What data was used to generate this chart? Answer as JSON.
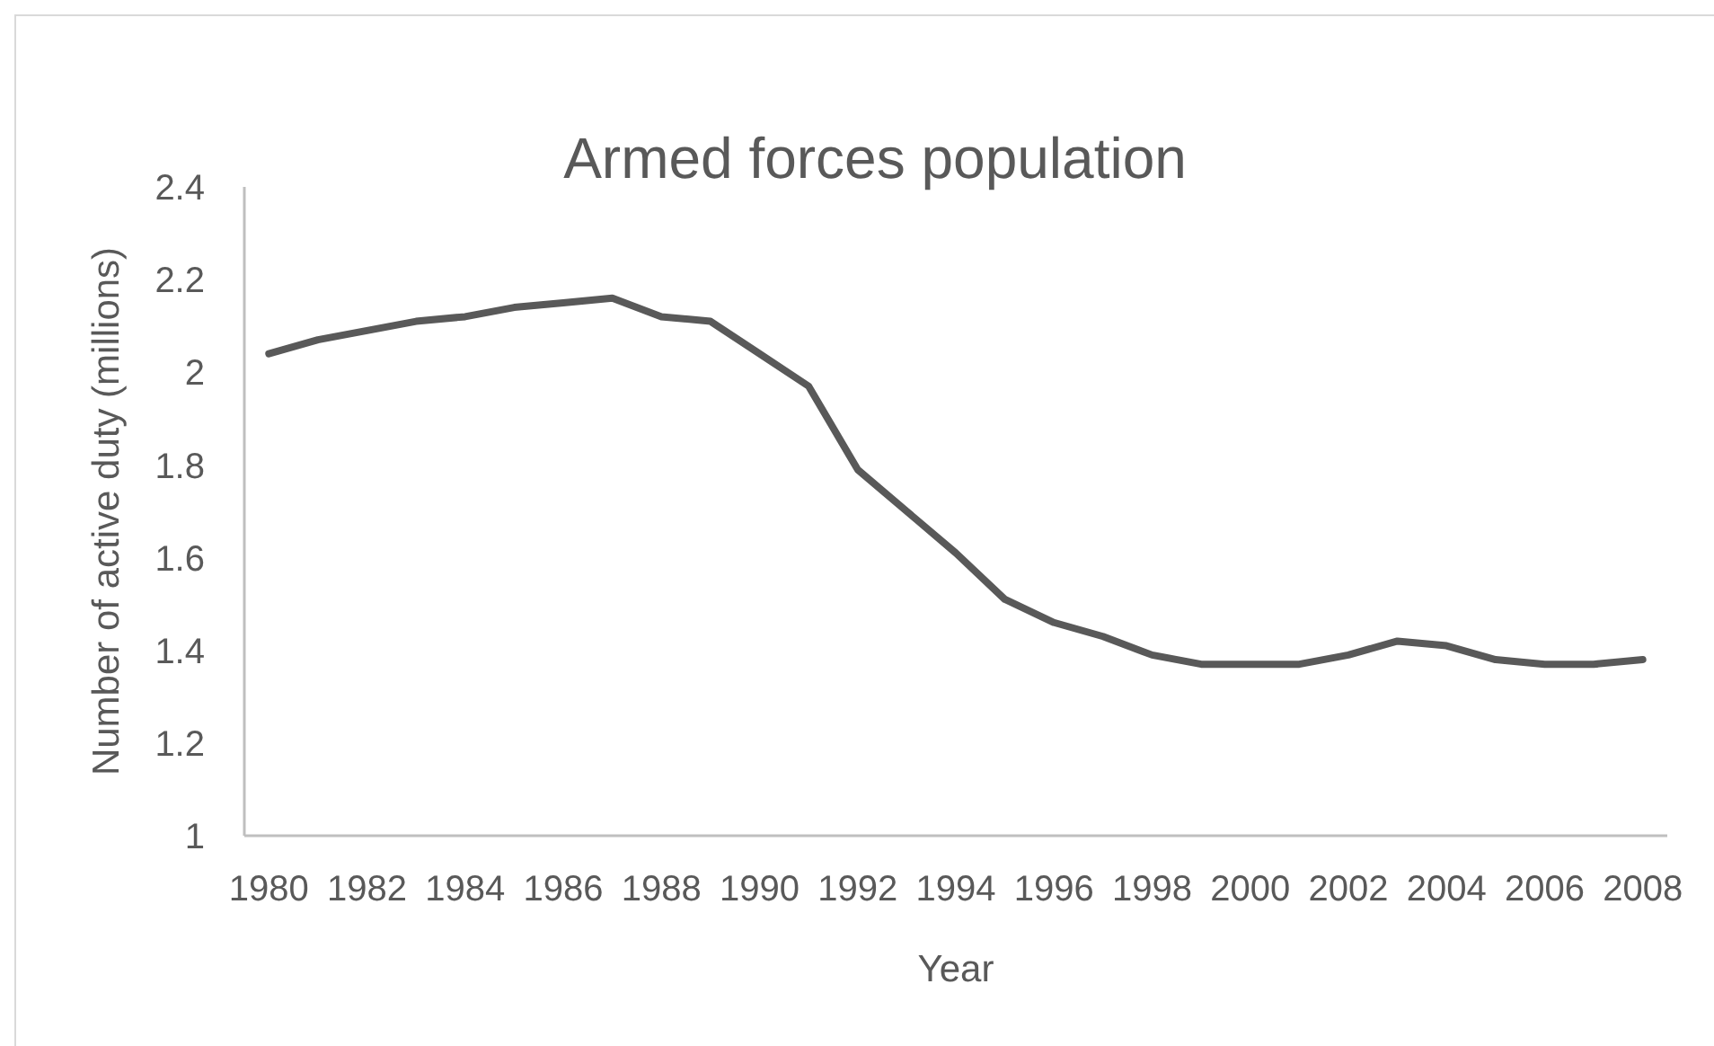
{
  "chart_data": {
    "type": "line",
    "title": "Armed forces population",
    "xlabel": "Year",
    "ylabel": "Number of active duty (millions)",
    "categories": [
      "1980",
      null,
      "1982",
      null,
      "1984",
      null,
      "1986",
      null,
      "1988",
      null,
      "1990",
      null,
      "1992",
      null,
      "1994",
      null,
      "1996",
      null,
      "1998",
      null,
      "2000",
      null,
      "2002",
      null,
      "2004",
      null,
      "2006",
      null,
      "2008"
    ],
    "series": [
      {
        "color": "#595959",
        "values": [
          2.04,
          2.07,
          2.09,
          2.11,
          2.12,
          2.14,
          2.15,
          2.16,
          2.12,
          2.11,
          2.04,
          1.97,
          1.79,
          1.7,
          1.61,
          1.51,
          1.46,
          1.43,
          1.39,
          1.37,
          1.37,
          1.37,
          1.39,
          1.42,
          1.41,
          1.38,
          1.37,
          1.37,
          1.38
        ]
      }
    ],
    "ylim": [
      1,
      2.4
    ],
    "yticks": [
      1,
      1.2,
      1.4,
      1.6,
      1.8,
      2,
      2.2,
      2.4
    ],
    "marker": "none",
    "line_style": "solid"
  }
}
